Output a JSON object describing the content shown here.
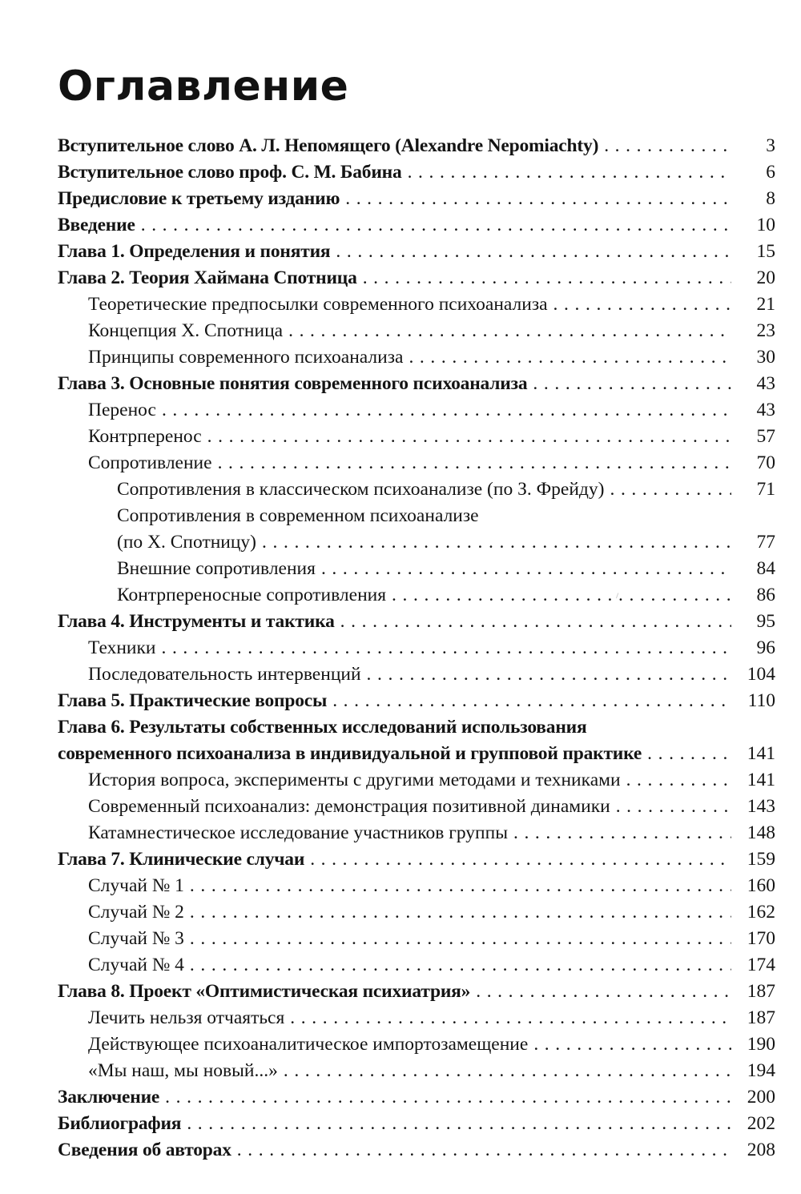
{
  "page": {
    "title": "Оглавление"
  },
  "toc": {
    "entries": [
      {
        "label": "Вступительное слово А. Л. Непомящего (Alexandre Nepomiachty)",
        "page": "3",
        "indent": 0,
        "bold": true
      },
      {
        "label": "Вступительное слово проф. С. М. Бабина",
        "page": "6",
        "indent": 0,
        "bold": true
      },
      {
        "label": "Предисловие к третьему изданию",
        "page": "8",
        "indent": 0,
        "bold": true
      },
      {
        "label": "Введение",
        "page": "10",
        "indent": 0,
        "bold": true
      },
      {
        "label": "Глава 1. Определения и понятия",
        "page": "15",
        "indent": 0,
        "bold": true
      },
      {
        "label": "Глава 2. Теория Хаймана Спотница",
        "page": "20",
        "indent": 0,
        "bold": true
      },
      {
        "label": "Теоретические предпосылки современного психоанализа",
        "page": "21",
        "indent": 1,
        "bold": false
      },
      {
        "label": "Концепция Х. Спотница",
        "page": "23",
        "indent": 1,
        "bold": false
      },
      {
        "label": "Принципы современного психоанализа",
        "page": "30",
        "indent": 1,
        "bold": false
      },
      {
        "label": "Глава 3. Основные понятия современного психоанализа",
        "page": "43",
        "indent": 0,
        "bold": true
      },
      {
        "label": "Перенос",
        "page": "43",
        "indent": 1,
        "bold": false
      },
      {
        "label": "Контрперенос",
        "page": "57",
        "indent": 1,
        "bold": false
      },
      {
        "label": "Сопротивление",
        "page": "70",
        "indent": 1,
        "bold": false
      },
      {
        "label": "Сопротивления в классическом психоанализе (по З. Фрейду)",
        "page": "71",
        "indent": 2,
        "bold": false
      },
      {
        "label": "Сопротивления в современном психоанализе",
        "label2": "(по Х. Спотницу)",
        "page": "77",
        "indent": 2,
        "bold": false
      },
      {
        "label": "Внешние сопротивления",
        "page": "84",
        "indent": 2,
        "bold": false
      },
      {
        "label": "Контрпереносные сопротивления",
        "page": "86",
        "indent": 2,
        "bold": false
      },
      {
        "label": "Глава 4. Инструменты и тактика",
        "page": "95",
        "indent": 0,
        "bold": true
      },
      {
        "label": "Техники",
        "page": "96",
        "indent": 1,
        "bold": false
      },
      {
        "label": "Последовательность интервенций",
        "page": "104",
        "indent": 1,
        "bold": false
      },
      {
        "label": "Глава 5. Практические вопросы",
        "page": "110",
        "indent": 0,
        "bold": true
      },
      {
        "label": "Глава 6. Результаты собственных исследований использования",
        "label2": "современного психоанализа в индивидуальной и групповой практике",
        "page": "141",
        "indent": 0,
        "bold": true
      },
      {
        "label": "История вопроса, эксперименты с другими методами и техниками",
        "page": "141",
        "indent": 1,
        "bold": false
      },
      {
        "label": "Современный психоанализ: демонстрация позитивной динамики",
        "page": "143",
        "indent": 1,
        "bold": false
      },
      {
        "label": "Катамнестическое исследование участников группы",
        "page": "148",
        "indent": 1,
        "bold": false
      },
      {
        "label": "Глава 7. Клинические случаи",
        "page": "159",
        "indent": 0,
        "bold": true
      },
      {
        "label": "Случай № 1",
        "page": "160",
        "indent": 1,
        "bold": false
      },
      {
        "label": "Случай № 2",
        "page": "162",
        "indent": 1,
        "bold": false
      },
      {
        "label": "Случай № 3",
        "page": "170",
        "indent": 1,
        "bold": false
      },
      {
        "label": "Случай № 4",
        "page": "174",
        "indent": 1,
        "bold": false
      },
      {
        "label": "Глава 8. Проект «Оптимистическая психиатрия»",
        "page": "187",
        "indent": 0,
        "bold": true
      },
      {
        "label": "Лечить нельзя отчаяться",
        "page": "187",
        "indent": 1,
        "bold": false
      },
      {
        "label": "Действующее психоаналитическое импортозамещение",
        "page": "190",
        "indent": 1,
        "bold": false
      },
      {
        "label": "«Мы наш, мы новый...»",
        "page": "194",
        "indent": 1,
        "bold": false
      },
      {
        "label": "Заключение",
        "page": "200",
        "indent": 0,
        "bold": true
      },
      {
        "label": "Библиография",
        "page": "202",
        "indent": 0,
        "bold": true
      },
      {
        "label": "Сведения об авторах",
        "page": "208",
        "indent": 0,
        "bold": true
      }
    ]
  }
}
